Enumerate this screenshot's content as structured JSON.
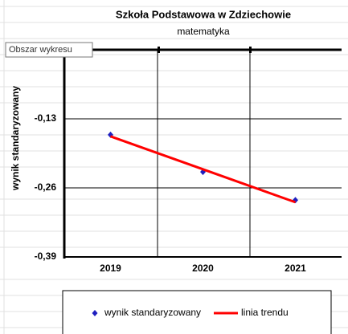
{
  "tooltip": "Obszar wykresu",
  "chart_data": {
    "type": "line",
    "title": "Szkoła Podstawowa w Zdziechowie",
    "subtitle": "matematyka",
    "y_label": "wynik standaryzowany",
    "categories": [
      "2019",
      "2020",
      "2021"
    ],
    "series": [
      {
        "name": "wynik standaryzowany",
        "color": "#1f1fbf",
        "style": "markers",
        "values": [
          -0.16,
          -0.23,
          -0.283
        ]
      },
      {
        "name": "linia trendu",
        "color": "#ff0000",
        "style": "line",
        "values": [
          -0.163,
          -0.225,
          -0.287
        ]
      }
    ],
    "ylim": [
      -0.39,
      0
    ],
    "yticks": [
      {
        "value": -0.39,
        "label": "-0,39"
      },
      {
        "value": -0.26,
        "label": "-0,26"
      },
      {
        "value": -0.13,
        "label": "-0,13"
      }
    ],
    "grid": true
  }
}
